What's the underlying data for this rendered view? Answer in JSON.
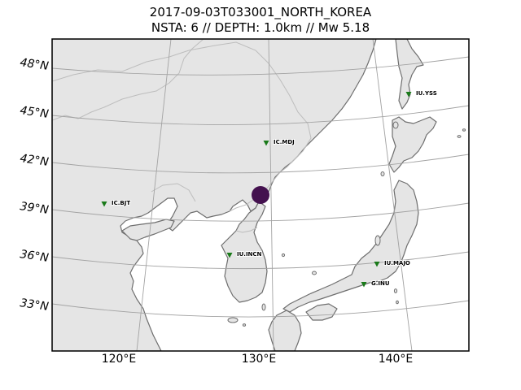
{
  "title": {
    "line1": "2017-09-03T033001_NORTH_KOREA",
    "line2": "NSTA: 6 // DEPTH: 1.0km // Mw 5.18"
  },
  "colors": {
    "land": "#e5e5e5",
    "coast": "#6e6e6e",
    "border": "#bdbdbd",
    "grid": "#a3a3a3",
    "station": "#1a7a1a",
    "event": "#44114f"
  },
  "axes": {
    "lat_labels": [
      "48°N",
      "45°N",
      "42°N",
      "39°N",
      "36°N",
      "33°N"
    ],
    "lon_labels": [
      "120°E",
      "130°E",
      "140°E"
    ]
  },
  "event": {
    "name": "NORTH_KOREA",
    "magnitude": 5.18,
    "depth_km": 1.0,
    "color": "#44114f"
  },
  "stations": [
    {
      "code": "IU.YSS"
    },
    {
      "code": "IC.MDJ"
    },
    {
      "code": "IC.BJT"
    },
    {
      "code": "IU.INCN"
    },
    {
      "code": "IU.MAJO"
    },
    {
      "code": "G.INU"
    }
  ]
}
